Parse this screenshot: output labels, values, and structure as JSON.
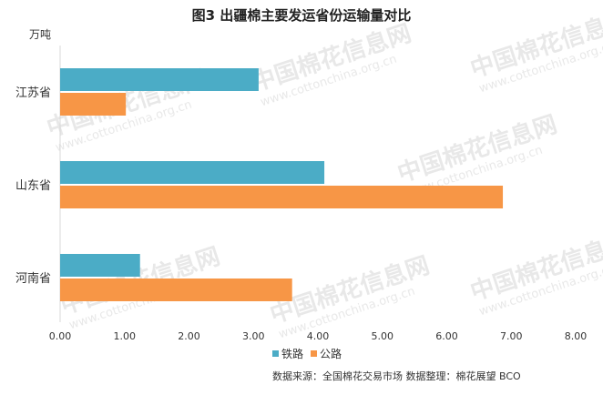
{
  "chart_data": {
    "type": "bar",
    "orientation": "horizontal",
    "title": "图3  出疆棉主要发运省份运输量对比",
    "unit_label": "万吨",
    "categories": [
      "江苏省",
      "山东省",
      "河南省"
    ],
    "series": [
      {
        "name": "铁路",
        "color": "#4bacc6",
        "values": [
          3.08,
          4.1,
          1.24
        ]
      },
      {
        "name": "公路",
        "color": "#f79646",
        "values": [
          1.02,
          6.87,
          3.6
        ]
      }
    ],
    "xlim": [
      0,
      8
    ],
    "xticks": [
      "0.00",
      "1.00",
      "2.00",
      "3.00",
      "4.00",
      "5.00",
      "6.00",
      "7.00",
      "8.00"
    ],
    "grid": false,
    "legend_position": "bottom"
  },
  "source_note": "数据来源：全国棉花交易市场    数据整理：棉花展望 BCO",
  "watermark": {
    "logo_text": "中国棉花信息网",
    "url_text": "www.cottonchina.org.cn"
  }
}
